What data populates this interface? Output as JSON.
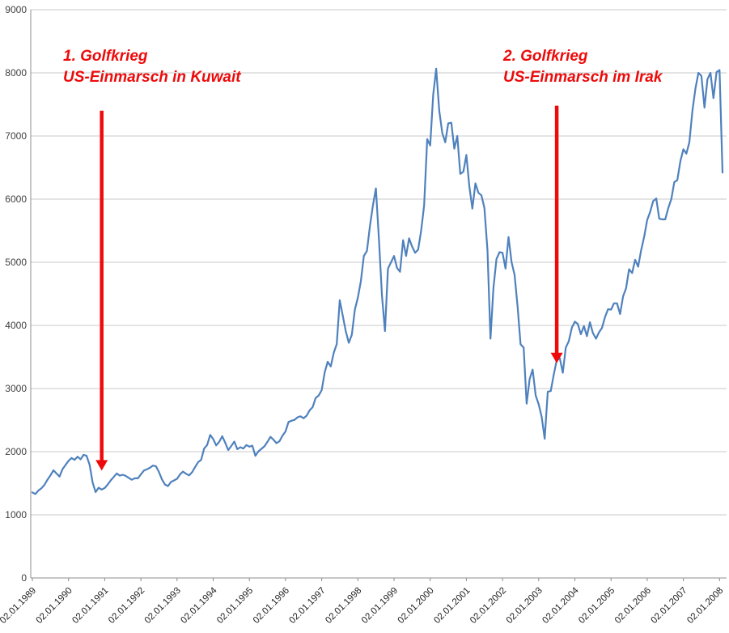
{
  "chart_data": {
    "type": "line",
    "y_max": 9000,
    "y_ticks": [
      0,
      1000,
      2000,
      3000,
      4000,
      5000,
      6000,
      7000,
      8000,
      9000
    ],
    "x_tick_every": 12,
    "x_tick_labels": [
      "02.01.1989",
      "02.01.1990",
      "02.01.1991",
      "02.01.1992",
      "02.01.1993",
      "02.01.1994",
      "02.01.1995",
      "02.01.1996",
      "02.01.1997",
      "02.01.1998",
      "02.01.1999",
      "02.01.2000",
      "02.01.2001",
      "02.01.2002",
      "02.01.2003",
      "02.01.2004",
      "02.01.2005",
      "02.01.2006",
      "02.01.2007",
      "02.01.2008"
    ],
    "values": [
      1355,
      1330,
      1385,
      1420,
      1475,
      1555,
      1625,
      1705,
      1655,
      1605,
      1720,
      1790,
      1855,
      1900,
      1870,
      1920,
      1880,
      1950,
      1935,
      1790,
      1510,
      1360,
      1430,
      1400,
      1425,
      1480,
      1545,
      1600,
      1655,
      1620,
      1635,
      1615,
      1585,
      1555,
      1580,
      1578,
      1640,
      1700,
      1720,
      1745,
      1780,
      1770,
      1680,
      1560,
      1480,
      1455,
      1520,
      1545,
      1570,
      1640,
      1685,
      1650,
      1625,
      1675,
      1755,
      1835,
      1870,
      2050,
      2105,
      2265,
      2200,
      2100,
      2155,
      2245,
      2140,
      2025,
      2090,
      2160,
      2040,
      2070,
      2050,
      2105,
      2080,
      2095,
      1935,
      2005,
      2045,
      2085,
      2155,
      2235,
      2190,
      2135,
      2165,
      2255,
      2320,
      2470,
      2490,
      2505,
      2545,
      2560,
      2530,
      2570,
      2655,
      2705,
      2850,
      2890,
      2975,
      3255,
      3425,
      3350,
      3565,
      3705,
      4400,
      4150,
      3905,
      3725,
      3850,
      4250,
      4440,
      4700,
      5100,
      5180,
      5570,
      5900,
      6170,
      5350,
      4470,
      3910,
      4900,
      5000,
      5100,
      4910,
      4850,
      5350,
      5100,
      5380,
      5250,
      5150,
      5200,
      5500,
      5900,
      6950,
      6850,
      7650,
      8065,
      7400,
      7050,
      6900,
      7200,
      7210,
      6800,
      7000,
      6400,
      6435,
      6700,
      6200,
      5850,
      6250,
      6100,
      6060,
      5860,
      5190,
      3790,
      4600,
      5050,
      5160,
      5150,
      4900,
      5400,
      5000,
      4800,
      4300,
      3700,
      3650,
      2760,
      3150,
      3300,
      2890,
      2750,
      2550,
      2205,
      2950,
      2960,
      3220,
      3450,
      3480,
      3250,
      3650,
      3750,
      3965,
      4060,
      4020,
      3860,
      3990,
      3830,
      4050,
      3880,
      3790,
      3890,
      3960,
      4130,
      4256,
      4250,
      4350,
      4350,
      4180,
      4460,
      4590,
      4890,
      4830,
      5040,
      4930,
      5190,
      5408,
      5670,
      5800,
      5970,
      6010,
      5690,
      5680,
      5680,
      5860,
      6000,
      6270,
      6300,
      6600,
      6790,
      6720,
      6900,
      7400,
      7750,
      8000,
      7950,
      7450,
      7900,
      8000,
      7600,
      8010,
      8045,
      6420
    ],
    "line_color": "#4f81bd",
    "grid_color": "#c9c9c9",
    "axis_color": "#8c8c8c",
    "annotation_color": "#ee0a0a",
    "annotations": [
      {
        "title": "1. Golfkrieg",
        "subtitle": "US-Einmarsch in Kuwait",
        "arrow_index": 23,
        "arrow_from": 7400,
        "arrow_to": 1700
      },
      {
        "title": "2. Golfkrieg",
        "subtitle": "US-Einmarsch im Irak",
        "arrow_index": 174,
        "arrow_from": 7480,
        "arrow_to": 3400
      }
    ]
  }
}
